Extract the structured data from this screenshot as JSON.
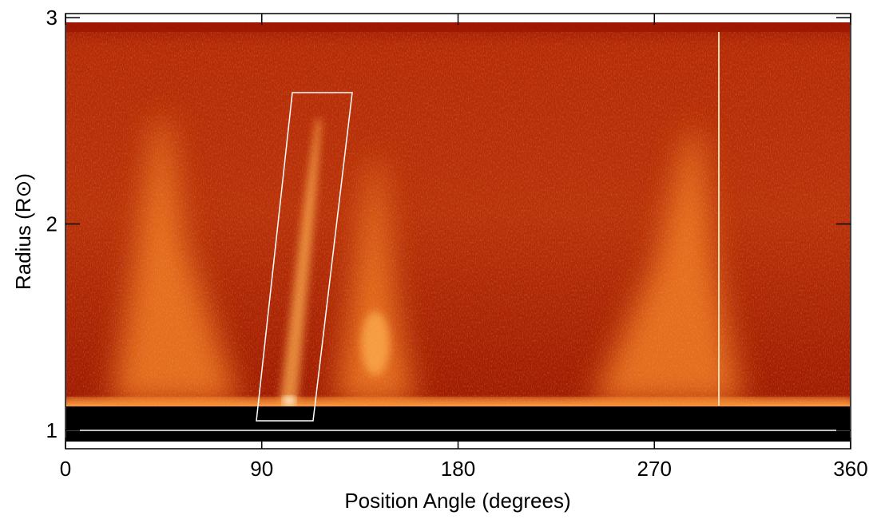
{
  "chart_data": {
    "type": "image",
    "xlabel": "Position Angle (degrees)",
    "ylabel": "Radius (R⊙)",
    "xlim": [
      0,
      360
    ],
    "ylim": [
      0.91,
      3.02
    ],
    "xticks": [
      0,
      90,
      180,
      270,
      360
    ],
    "yticks": [
      1,
      2,
      3
    ]
  }
}
